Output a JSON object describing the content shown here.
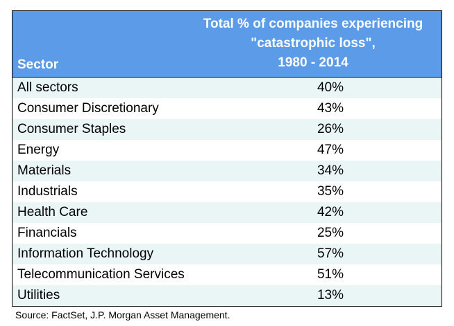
{
  "colors": {
    "header_bg": "#5B9BE8",
    "row_alt_bg": "#EAF6F6",
    "row_bg": "#FFFFFF",
    "header_text": "#FFFFFF"
  },
  "chart_data": {
    "type": "table",
    "columns": [
      "Sector",
      "Total % of companies experiencing \"catastrophic loss\", 1980 - 2014"
    ],
    "header": {
      "sector": "Sector",
      "value_line1": "Total % of companies experiencing",
      "value_line2": "\"catastrophic loss\",",
      "value_line3": "1980 - 2014"
    },
    "rows": [
      {
        "sector": "All sectors",
        "value": "40%"
      },
      {
        "sector": "Consumer Discretionary",
        "value": "43%"
      },
      {
        "sector": "Consumer Staples",
        "value": "26%"
      },
      {
        "sector": "Energy",
        "value": "47%"
      },
      {
        "sector": "Materials",
        "value": "34%"
      },
      {
        "sector": "Industrials",
        "value": "35%"
      },
      {
        "sector": "Health Care",
        "value": "42%"
      },
      {
        "sector": "Financials",
        "value": "25%"
      },
      {
        "sector": "Information Technology",
        "value": "57%"
      },
      {
        "sector": "Telecommunication Services",
        "value": "51%"
      },
      {
        "sector": "Utilities",
        "value": "13%"
      }
    ],
    "source": "Source: FactSet, J.P. Morgan Asset Management."
  }
}
